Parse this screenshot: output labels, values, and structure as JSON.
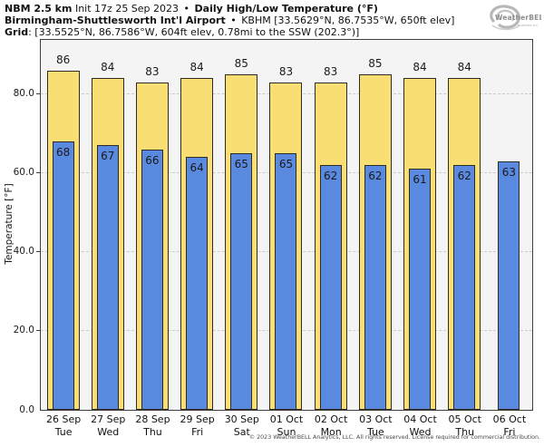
{
  "header": {
    "model": "NBM 2.5 km",
    "init": "Init 17z 25 Sep 2023",
    "bullet": "•",
    "product": "Daily High/Low Temperature (°F)",
    "station": "Birmingham-Shuttlesworth Int'l Airport",
    "station_info": "KBHM [33.5629°N, 86.7535°W, 650ft elev]",
    "grid_label": "Grid",
    "grid_info": ": [33.5525°N, 86.7586°W, 604ft elev, 0.78mi to the SSW (202.3°)]"
  },
  "logo": {
    "name": "WeatherBELL",
    "sub": "Analytics LLC"
  },
  "chart_data": {
    "type": "bar",
    "title": "Daily High/Low Temperature (°F)",
    "categories": [
      "26 Sep",
      "27 Sep",
      "28 Sep",
      "29 Sep",
      "30 Sep",
      "01 Oct",
      "02 Oct",
      "03 Oct",
      "04 Oct",
      "05 Oct",
      "06 Oct"
    ],
    "weekdays": [
      "Tue",
      "Wed",
      "Thu",
      "Fri",
      "Sat",
      "Sun",
      "Mon",
      "Tue",
      "Wed",
      "Thu",
      "Fri"
    ],
    "series": [
      {
        "name": "High",
        "color": "#F9DF73",
        "values": [
          86,
          84,
          83,
          84,
          85,
          83,
          83,
          85,
          84,
          84,
          null
        ]
      },
      {
        "name": "Low",
        "color": "#5A89E0",
        "values": [
          68,
          67,
          66,
          64,
          65,
          65,
          62,
          62,
          61,
          62,
          63
        ]
      }
    ],
    "ylabel": "Temperature [°F]",
    "ylim": [
      0,
      93.5
    ],
    "yticks": [
      0,
      20,
      40,
      60,
      80
    ],
    "ytick_labels": [
      "0.0",
      "20.0",
      "40.0",
      "60.0",
      "80.0"
    ],
    "grid": "horizontal-dashed",
    "plot_background": "#f4f4f4",
    "bar_border_color": "#2e2b26"
  },
  "footer": {
    "copyright": "© 2023 WeatherBELL Analytics, LLC. All rights reserved. License required for commercial distribution."
  }
}
